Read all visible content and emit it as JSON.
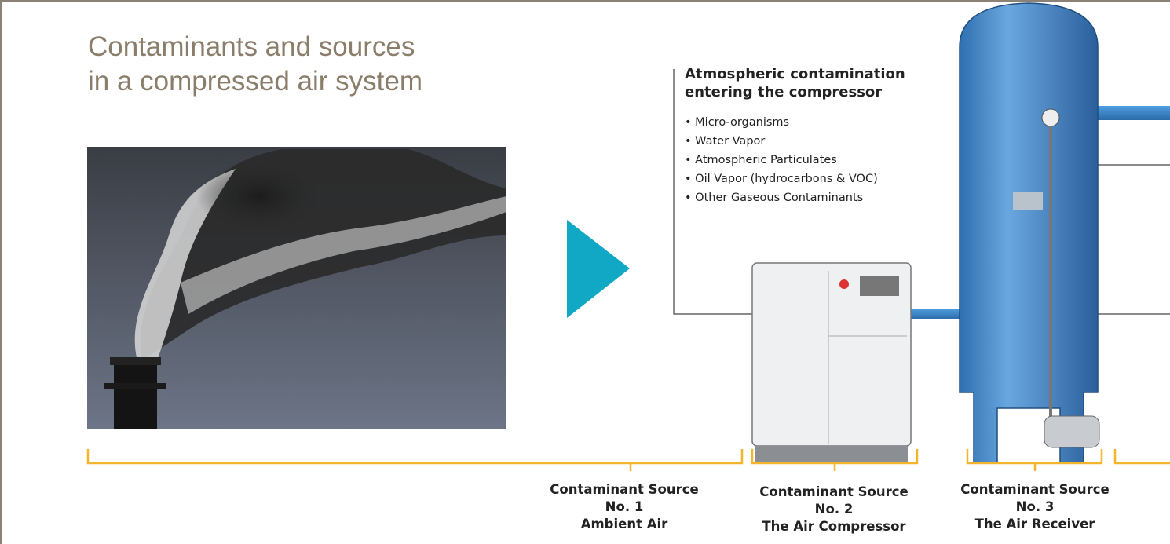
{
  "header": {
    "title_lines": [
      "Contaminants and sources",
      "in a compressed air system"
    ]
  },
  "callout": {
    "title_lines": [
      "Atmospheric contamination",
      "entering the compressor"
    ],
    "items": [
      "• Micro-organisms",
      "• Water Vapor",
      "• Atmospheric Particulates",
      "• Oil Vapor (hydrocarbons & VOC)",
      "• Other Gaseous Contaminants"
    ]
  },
  "sources": [
    {
      "lines": [
        "Contaminant Source",
        "No. 1",
        "Ambient Air"
      ]
    },
    {
      "lines": [
        "Contaminant Source",
        "No. 2",
        "The Air Compressor"
      ]
    },
    {
      "lines": [
        "Contaminant Source",
        "No. 3",
        "The Air Receiver"
      ]
    }
  ]
}
